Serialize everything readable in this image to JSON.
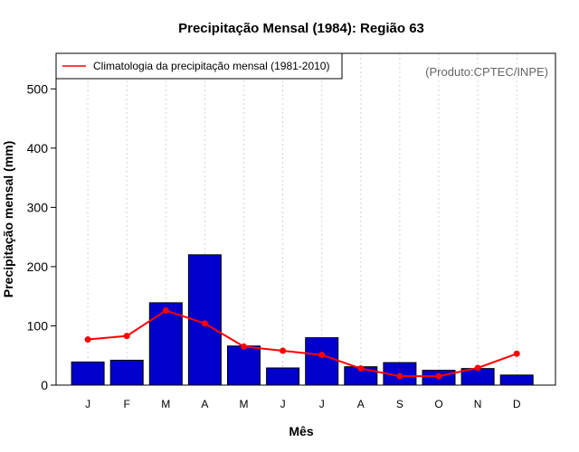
{
  "chart_data": {
    "type": "bar",
    "title": "Precipitação Mensal (1984): Região 63",
    "xlabel": "Mês",
    "ylabel": "Precipitação mensal (mm)",
    "ylim": [
      0,
      560
    ],
    "yticks": [
      0,
      100,
      200,
      300,
      400,
      500
    ],
    "grid": true,
    "categories": [
      "J",
      "F",
      "M",
      "A",
      "M",
      "J",
      "J",
      "A",
      "S",
      "O",
      "N",
      "D"
    ],
    "series": [
      {
        "name": "Precipitação mensal (1984)",
        "type": "bar",
        "color": "#0000cd",
        "values": [
          39,
          42,
          139,
          220,
          66,
          29,
          80,
          31,
          38,
          25,
          28,
          17
        ]
      },
      {
        "name": "Climatologia da precipitação mensal (1981-2010)",
        "type": "line",
        "color": "#ff0000",
        "values": [
          77,
          83,
          126,
          104,
          65,
          58,
          51,
          28,
          15,
          15,
          29,
          53
        ]
      }
    ],
    "legend": {
      "position": "top-left",
      "entries": [
        "Climatologia da precipitação mensal (1981-2010)"
      ]
    },
    "annotation": "(Produto:CPTEC/INPE)"
  }
}
